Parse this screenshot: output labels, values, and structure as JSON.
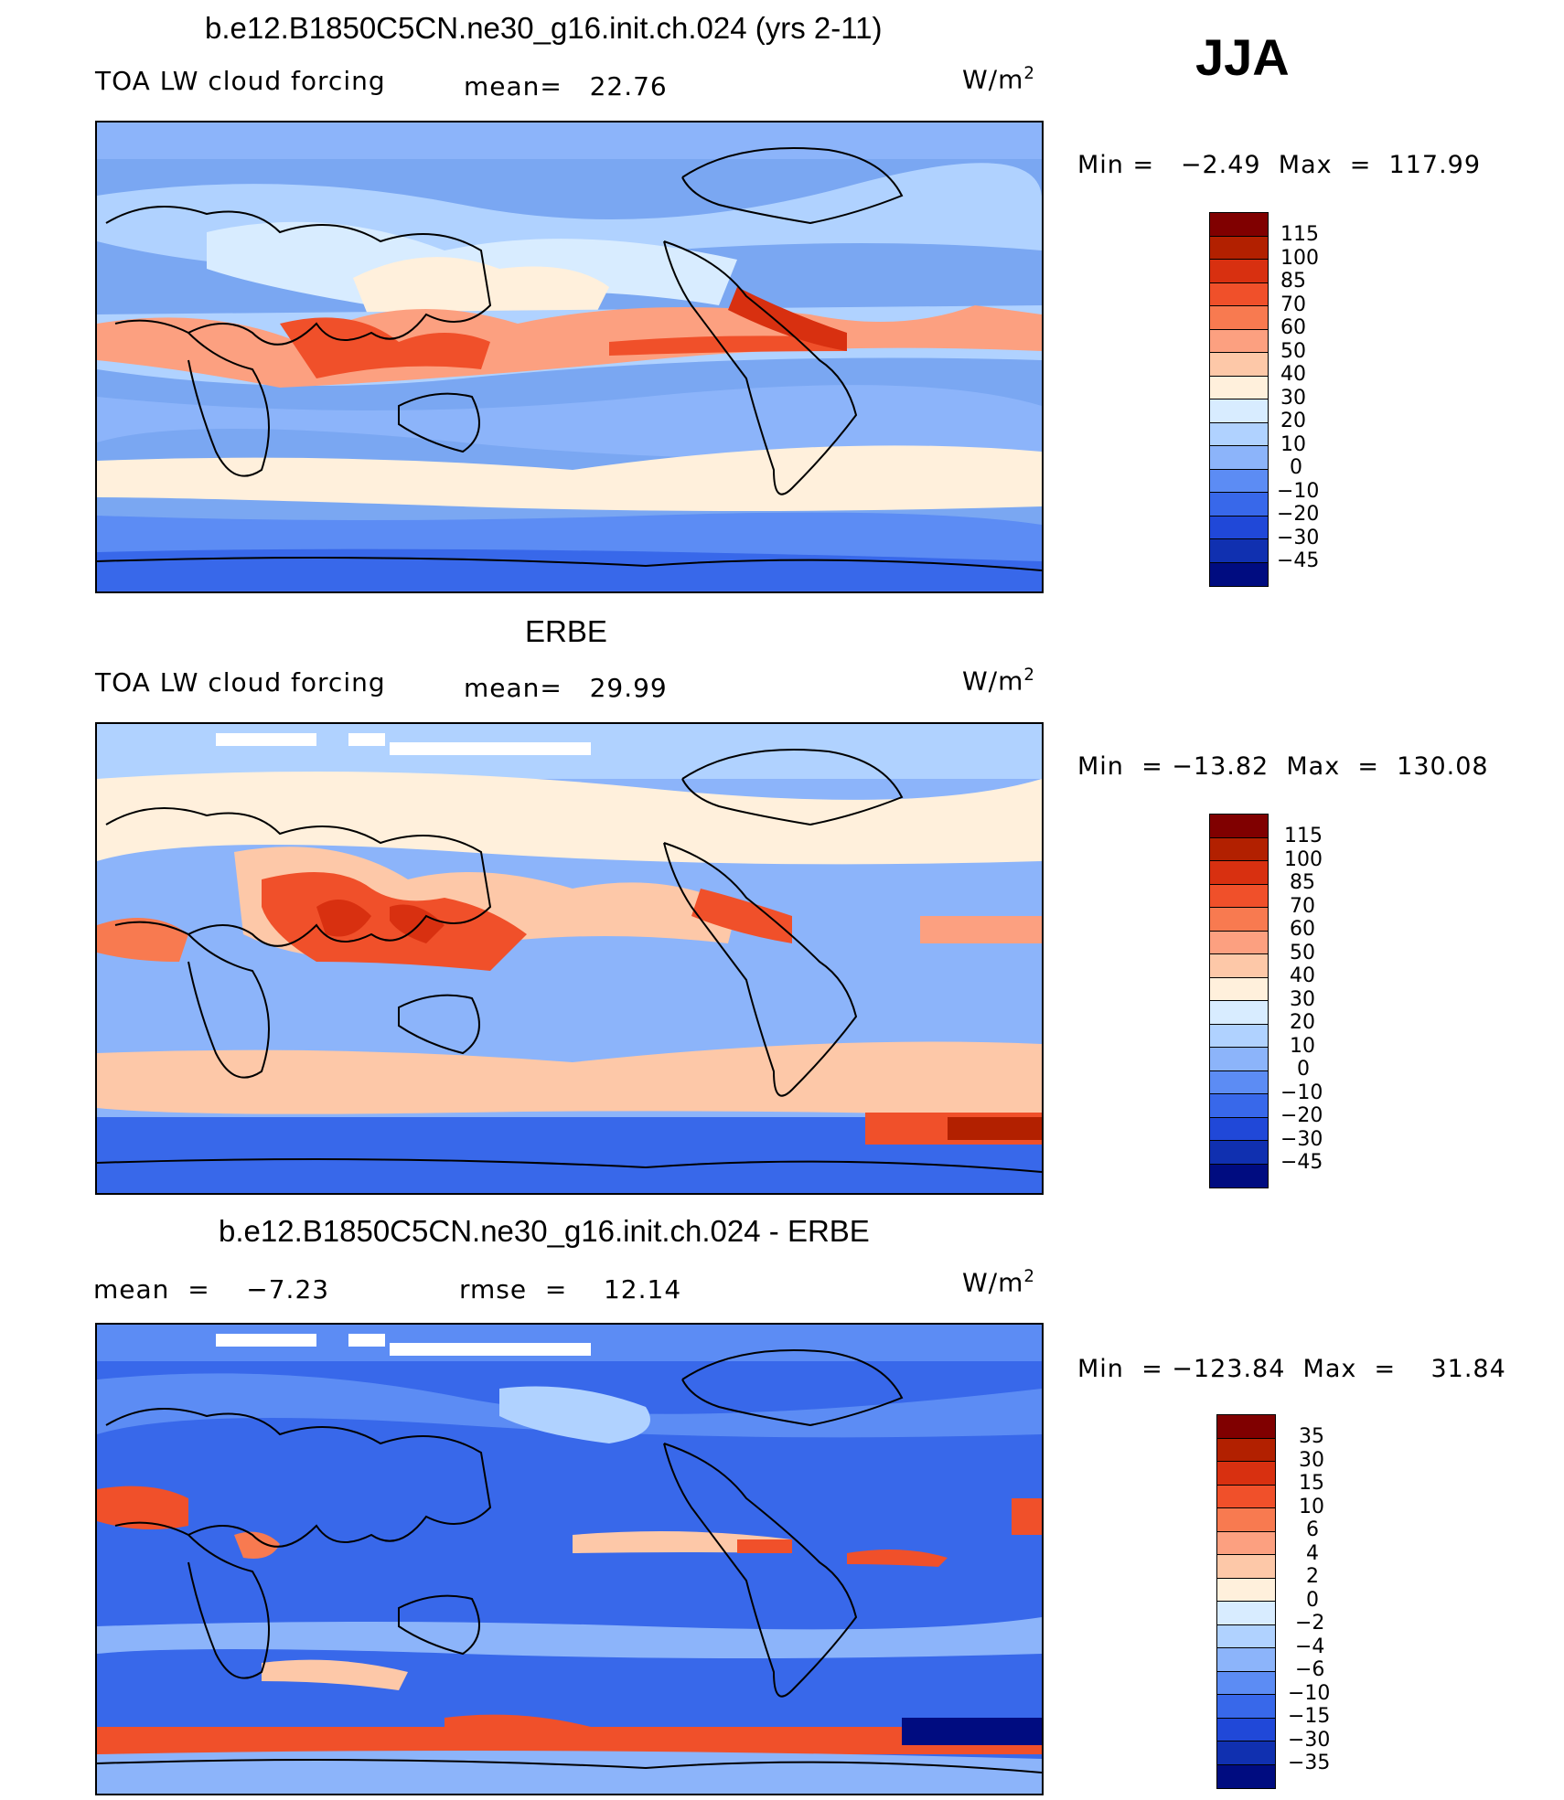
{
  "season": "JJA",
  "units": "W/m",
  "units_sup": "2",
  "panels": [
    {
      "title": "b.e12.B1850C5CN.ne30_g16.init.ch.024 (yrs 2-11)",
      "left_label": "TOA LW cloud forcing",
      "stat1": "mean=   22.76",
      "stat2": "",
      "minmax": "Min =   −2.49  Max  =  117.99"
    },
    {
      "title": "ERBE",
      "left_label": "TOA LW cloud forcing",
      "stat1": "mean=   29.99",
      "stat2": "",
      "minmax": "Min  = −13.82  Max  =  130.08"
    },
    {
      "title": "b.e12.B1850C5CN.ne30_g16.init.ch.024 - ERBE",
      "left_label": "mean  =    −7.23",
      "stat1": "rmse  =    12.14",
      "stat2": "",
      "minmax": "Min  = −123.84  Max  =    31.84"
    }
  ],
  "chart_data": [
    {
      "type": "heatmap",
      "title": "b.e12.B1850C5CN.ne30_g16.init.ch.024 (yrs 2-11)",
      "field": "TOA LW cloud forcing",
      "mean": 22.76,
      "min": -2.49,
      "max": 117.99,
      "colorbar_levels": [
        "115",
        "100",
        "85",
        "70",
        "60",
        "50",
        "40",
        "30",
        "20",
        "10",
        "0",
        "−10",
        "−20",
        "−30",
        "−45"
      ],
      "colorbar_colors": [
        "#800000",
        "#b22000",
        "#d83010",
        "#f0502a",
        "#f87a50",
        "#fca080",
        "#fdc8a8",
        "#fff0dc",
        "#d8ecff",
        "#b0d2ff",
        "#8cb4fa",
        "#5c8cf4",
        "#3868ea",
        "#2048d8",
        "#1030b0",
        "#000c80"
      ]
    },
    {
      "type": "heatmap",
      "title": "ERBE",
      "field": "TOA LW cloud forcing",
      "mean": 29.99,
      "min": -13.82,
      "max": 130.08,
      "colorbar_levels": [
        "115",
        "100",
        "85",
        "70",
        "60",
        "50",
        "40",
        "30",
        "20",
        "10",
        "0",
        "−10",
        "−20",
        "−30",
        "−45"
      ],
      "colorbar_colors": [
        "#800000",
        "#b22000",
        "#d83010",
        "#f0502a",
        "#f87a50",
        "#fca080",
        "#fdc8a8",
        "#fff0dc",
        "#d8ecff",
        "#b0d2ff",
        "#8cb4fa",
        "#5c8cf4",
        "#3868ea",
        "#2048d8",
        "#1030b0",
        "#000c80"
      ]
    },
    {
      "type": "heatmap",
      "title": "b.e12.B1850C5CN.ne30_g16.init.ch.024 - ERBE",
      "mean": -7.23,
      "rmse": 12.14,
      "min": -123.84,
      "max": 31.84,
      "colorbar_levels": [
        "35",
        "30",
        "15",
        "10",
        "6",
        "4",
        "2",
        "0",
        "−2",
        "−4",
        "−6",
        "−10",
        "−15",
        "−30",
        "−35"
      ],
      "colorbar_colors": [
        "#800000",
        "#b22000",
        "#d83010",
        "#f0502a",
        "#f87a50",
        "#fca080",
        "#fdc8a8",
        "#fff0dc",
        "#d8ecff",
        "#b0d2ff",
        "#8cb4fa",
        "#5c8cf4",
        "#3868ea",
        "#2048d8",
        "#1030b0",
        "#000c80"
      ]
    }
  ]
}
